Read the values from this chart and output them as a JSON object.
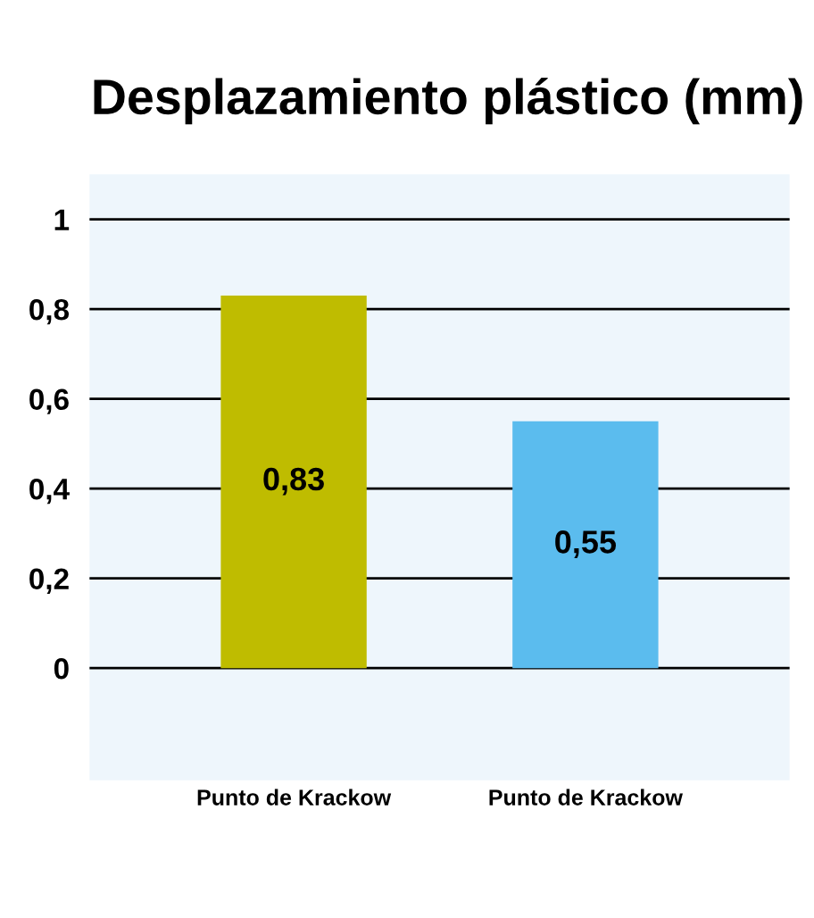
{
  "chart_data": {
    "type": "bar",
    "title": "Desplazamiento plástico (mm)",
    "categories": [
      "Punto de Krackow",
      "Punto de Krackow"
    ],
    "values": [
      0.83,
      0.55
    ],
    "colors": [
      "#bfbc00",
      "#5bbcee"
    ],
    "value_labels": [
      "0,83",
      "0,55"
    ],
    "ylim": [
      -0.25,
      1.1
    ],
    "yticks": [
      {
        "value": 0,
        "label": "0"
      },
      {
        "value": 0.2,
        "label": "0,2"
      },
      {
        "value": 0.4,
        "label": "0,4"
      },
      {
        "value": 0.6,
        "label": "0,6"
      },
      {
        "value": 0.8,
        "label": "0,8"
      },
      {
        "value": 1,
        "label": "1"
      }
    ],
    "grid": "y"
  }
}
